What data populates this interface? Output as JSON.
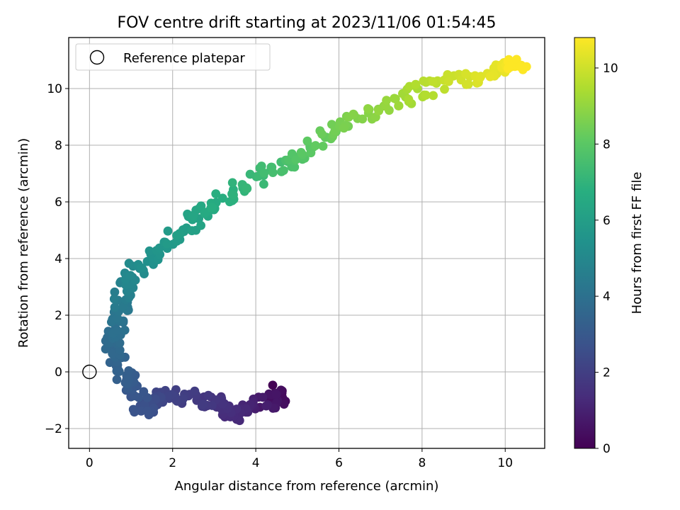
{
  "chart_data": {
    "type": "scatter",
    "title": "FOV centre drift starting at 2023/11/06 01:54:45",
    "xlabel": "Angular distance from reference (arcmin)",
    "ylabel": "Rotation from reference (arcmin)",
    "xlim": [
      -0.5,
      10.95
    ],
    "ylim": [
      -2.7,
      11.8
    ],
    "x_ticks": [
      0,
      2,
      4,
      6,
      8,
      10
    ],
    "y_ticks": [
      -2,
      0,
      2,
      4,
      6,
      8,
      10
    ],
    "grid": true,
    "legend": {
      "placement": "top-left",
      "entries": [
        {
          "label": "Reference platepar",
          "marker": "open-circle"
        }
      ]
    },
    "reference_point": {
      "x": 0,
      "y": 0
    },
    "colorbar": {
      "label": "Hours from first FF file",
      "colormap": "viridis",
      "range": [
        0,
        10.8
      ],
      "ticks": [
        0,
        2,
        4,
        6,
        8,
        10
      ]
    },
    "drift_path": [
      {
        "hours": 0.0,
        "x": 4.6,
        "y": -0.6
      },
      {
        "hours": 0.4,
        "x": 4.5,
        "y": -0.9
      },
      {
        "hours": 0.8,
        "x": 4.2,
        "y": -1.1
      },
      {
        "hours": 1.1,
        "x": 3.8,
        "y": -1.4
      },
      {
        "hours": 1.3,
        "x": 3.4,
        "y": -1.6
      },
      {
        "hours": 1.5,
        "x": 3.2,
        "y": -1.1
      },
      {
        "hours": 1.8,
        "x": 2.7,
        "y": -1.0
      },
      {
        "hours": 2.1,
        "x": 2.0,
        "y": -0.8
      },
      {
        "hours": 2.4,
        "x": 1.5,
        "y": -1.0
      },
      {
        "hours": 2.7,
        "x": 1.3,
        "y": -1.4
      },
      {
        "hours": 3.0,
        "x": 1.0,
        "y": -0.5
      },
      {
        "hours": 3.3,
        "x": 0.75,
        "y": 0.0
      },
      {
        "hours": 3.6,
        "x": 0.55,
        "y": 0.7
      },
      {
        "hours": 3.9,
        "x": 0.6,
        "y": 1.4
      },
      {
        "hours": 4.2,
        "x": 0.75,
        "y": 2.0
      },
      {
        "hours": 4.6,
        "x": 0.8,
        "y": 2.8
      },
      {
        "hours": 5.0,
        "x": 1.0,
        "y": 3.4
      },
      {
        "hours": 5.4,
        "x": 1.4,
        "y": 4.0
      },
      {
        "hours": 5.8,
        "x": 2.0,
        "y": 4.7
      },
      {
        "hours": 6.2,
        "x": 2.5,
        "y": 5.3
      },
      {
        "hours": 6.6,
        "x": 3.0,
        "y": 5.9
      },
      {
        "hours": 7.0,
        "x": 3.6,
        "y": 6.5
      },
      {
        "hours": 7.4,
        "x": 4.3,
        "y": 7.1
      },
      {
        "hours": 7.8,
        "x": 5.0,
        "y": 7.6
      },
      {
        "hours": 8.2,
        "x": 5.6,
        "y": 8.2
      },
      {
        "hours": 8.6,
        "x": 6.2,
        "y": 8.8
      },
      {
        "hours": 9.0,
        "x": 7.0,
        "y": 9.4
      },
      {
        "hours": 9.4,
        "x": 7.8,
        "y": 9.8
      },
      {
        "hours": 9.8,
        "x": 8.5,
        "y": 10.2
      },
      {
        "hours": 10.2,
        "x": 9.3,
        "y": 10.4
      },
      {
        "hours": 10.5,
        "x": 9.9,
        "y": 10.7
      },
      {
        "hours": 10.8,
        "x": 10.3,
        "y": 10.8
      }
    ]
  }
}
